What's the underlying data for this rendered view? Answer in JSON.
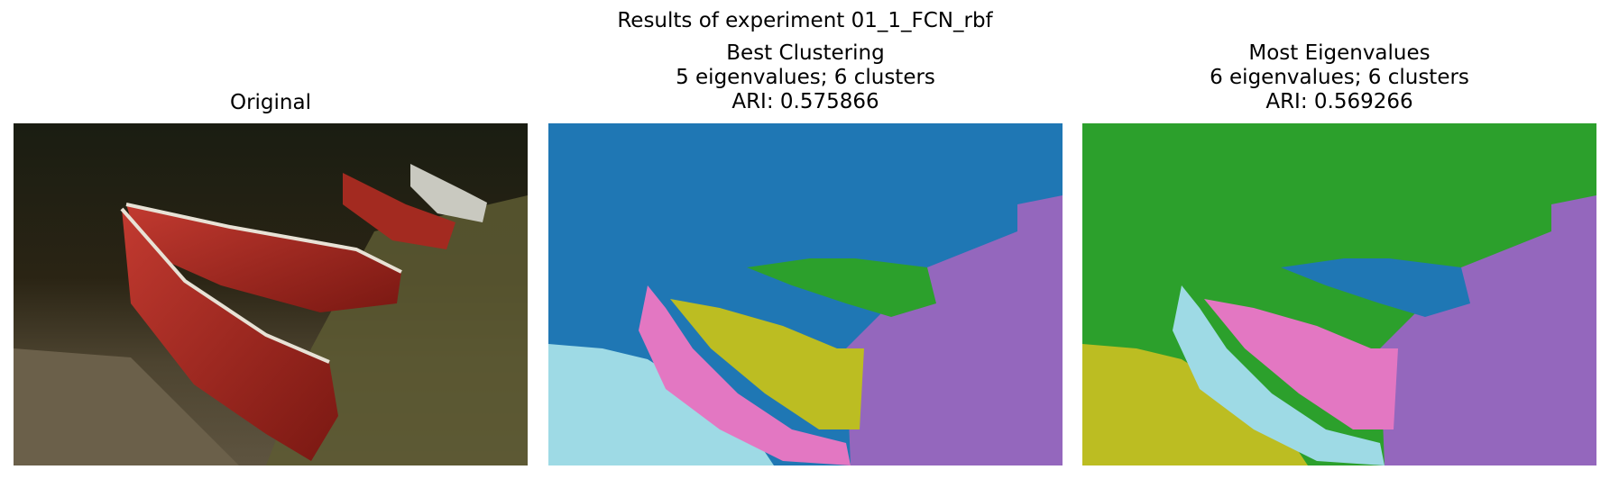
{
  "figure": {
    "suptitle": "Results of experiment 01_1_FCN_rbf"
  },
  "panels": [
    {
      "title_lines": [
        "Original"
      ],
      "kind": "photo"
    },
    {
      "title_lines": [
        "Best Clustering",
        "5 eigenvalues; 6 clusters",
        "ARI: 0.575866"
      ],
      "kind": "segmentation",
      "cluster_colors": {
        "water": "#1f77b4",
        "grass_right": "#9467bd",
        "shore_left": "#9edae5",
        "boat_hull_near": "#e377c2",
        "boat_interior": "#bcbd22",
        "boat_far": "#2ca02c"
      }
    },
    {
      "title_lines": [
        "Most Eigenvalues",
        "6 eigenvalues; 6 clusters",
        "ARI: 0.569266"
      ],
      "kind": "segmentation",
      "cluster_colors": {
        "water": "#2ca02c",
        "grass_right": "#9467bd",
        "shore_left": "#bcbd22",
        "boat_hull_near": "#9edae5",
        "boat_interior": "#e377c2",
        "boat_far": "#1f77b4"
      }
    }
  ]
}
